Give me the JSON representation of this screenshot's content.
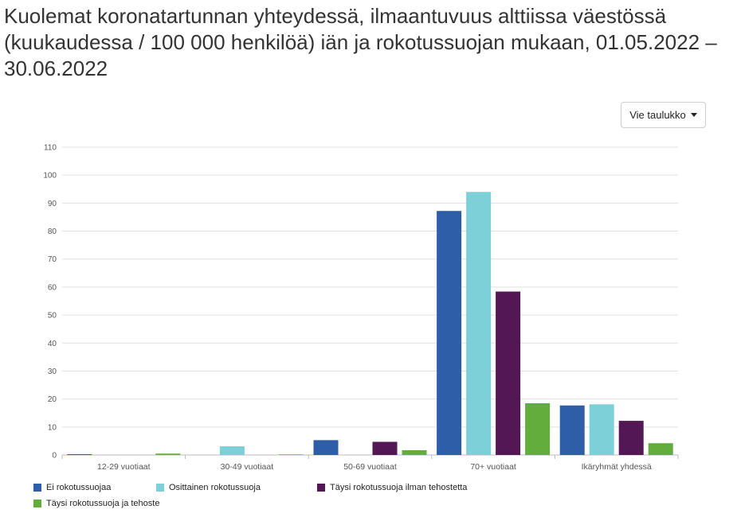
{
  "chart_data": {
    "type": "bar",
    "title": "Kuolemat koronatartunnan yhteydessä, ilmaantuvuus alttiissa väestössä (kuukaudessa / 100 000 henkilöä) iän ja rokotussuojan mukaan, 01.05.2022 – 30.06.2022",
    "categories": [
      "12-29 vuotiaat",
      "30-49 vuotiaat",
      "50-69 vuotiaat",
      "70+ vuotiaat",
      "Ikäryhmät yhdessä"
    ],
    "series": [
      {
        "name": "Ei rokotussuojaa",
        "color": "#2e5ea8",
        "values": [
          0.3,
          0.0,
          5.3,
          87.2,
          17.7
        ]
      },
      {
        "name": "Osittainen rokotussuoja",
        "color": "#7dd0d8",
        "values": [
          0.0,
          3.1,
          0.0,
          94.0,
          18.1
        ]
      },
      {
        "name": "Täysi rokotussuoja ilman tehostetta",
        "color": "#541755",
        "values": [
          0.0,
          0.0,
          4.7,
          58.4,
          12.2
        ]
      },
      {
        "name": "Täysi rokotussuoja ja tehoste",
        "color": "#62ad3c",
        "values": [
          0.5,
          0.2,
          1.7,
          18.5,
          4.2
        ]
      }
    ],
    "xlabel": "",
    "ylabel": "",
    "ylim": [
      0,
      110
    ],
    "yticks": [
      0,
      10,
      20,
      30,
      40,
      50,
      60,
      70,
      80,
      90,
      100,
      110
    ],
    "grid": true,
    "legend_position": "bottom"
  },
  "menu": {
    "table_button_label": "Vie taulukko",
    "icon": "caret-down-icon"
  },
  "colors": {
    "gridline": "#e0e0e0",
    "axis": "#bbbbbb"
  }
}
